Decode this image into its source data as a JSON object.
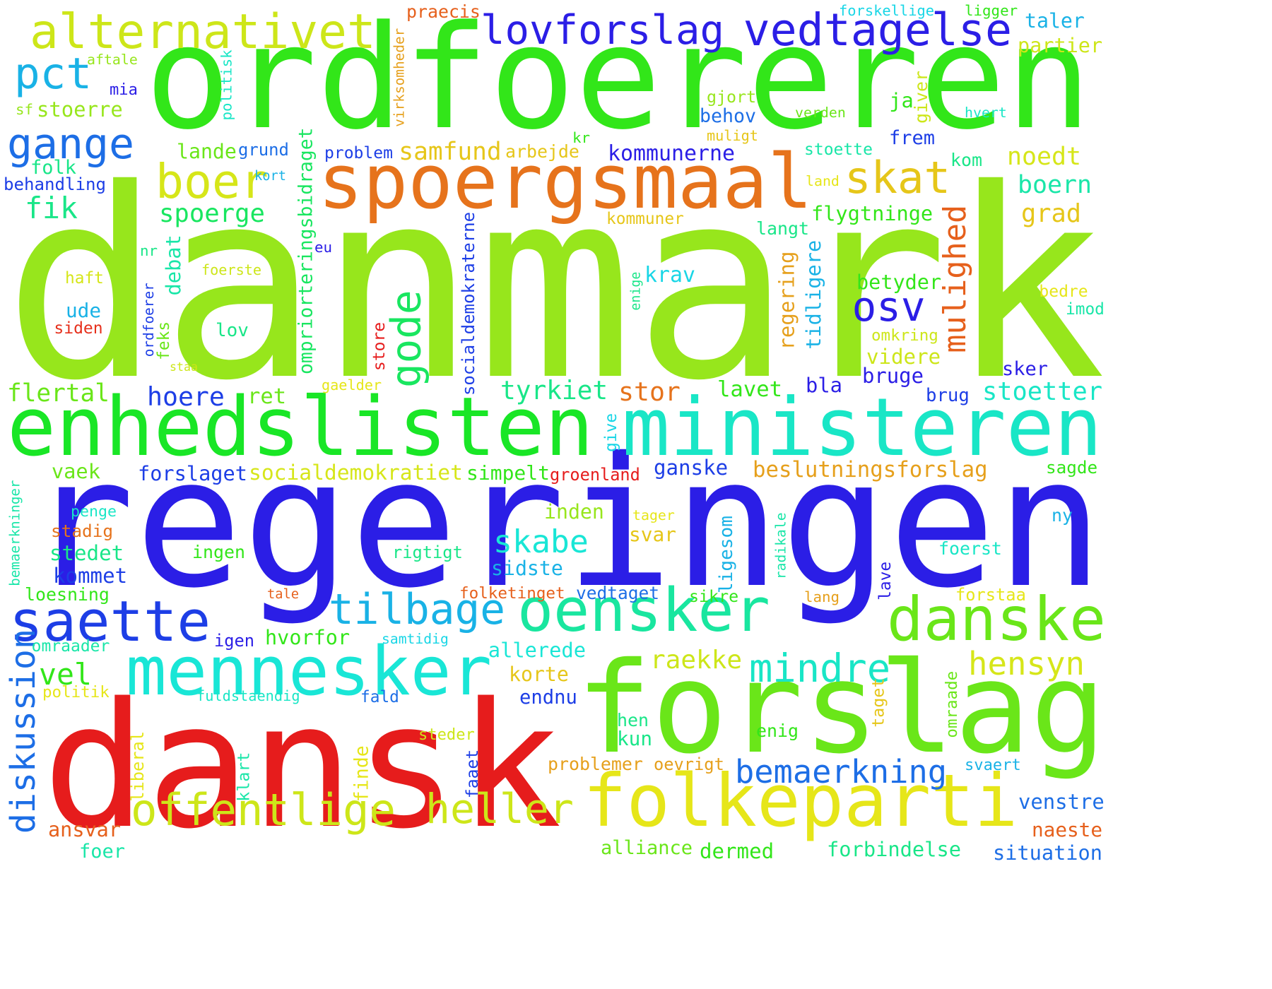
{
  "words": [
    {
      "text": "danmark",
      "color": "#97e61c"
    },
    {
      "text": "regeringen",
      "color": "#2b1ee6"
    },
    {
      "text": "ordfoereren",
      "color": "#32e619"
    },
    {
      "text": "dansk",
      "color": "#e61c1c"
    },
    {
      "text": "forslag",
      "color": "#6ae619"
    },
    {
      "text": "enhedslisten",
      "color": "#19e626"
    },
    {
      "text": "ministeren",
      "color": "#19e6c6"
    },
    {
      "text": "spoergsmaal",
      "color": "#e6731c"
    },
    {
      "text": "folkeparti",
      "color": "#e6e619"
    },
    {
      "text": "mennesker",
      "color": "#19e6d6"
    },
    {
      "text": "danske",
      "color": "#6ae619"
    },
    {
      "text": "oensker",
      "color": "#19e69f"
    },
    {
      "text": "saette",
      "color": "#1d3ee6"
    },
    {
      "text": "tilbage",
      "color": "#19b2e6"
    },
    {
      "text": "offentlige",
      "color": "#cde619"
    },
    {
      "text": "heller",
      "color": "#cde619"
    },
    {
      "text": "alternativet",
      "color": "#cde619"
    },
    {
      "text": "lovforslag",
      "color": "#2b1ee6"
    },
    {
      "text": "vedtagelse",
      "color": "#2b1ee6"
    },
    {
      "text": "boer",
      "color": "#d6e619"
    },
    {
      "text": "skat",
      "color": "#e6c619"
    },
    {
      "text": "gange",
      "color": "#1d6ee6"
    },
    {
      "text": "pct",
      "color": "#19b2e6"
    },
    {
      "text": "mulighed",
      "color": "#e6601c"
    },
    {
      "text": "gode",
      "color": "#19e660"
    },
    {
      "text": "osv",
      "color": "#2b1ee6"
    },
    {
      "text": "diskussion",
      "color": "#1d6ee6"
    },
    {
      "text": "bemaerkning",
      "color": "#1d6ee6"
    },
    {
      "text": "mindre",
      "color": "#19e6c6"
    },
    {
      "text": "hensyn",
      "color": "#d6e619"
    },
    {
      "text": "fik",
      "color": "#19e688"
    },
    {
      "text": "spoerge",
      "color": "#19e660"
    },
    {
      "text": "flertal",
      "color": "#6ae619"
    },
    {
      "text": "hoere",
      "color": "#1d3ee6"
    },
    {
      "text": "ret",
      "color": "#6ae619"
    },
    {
      "text": "tyrkiet",
      "color": "#19e688"
    },
    {
      "text": "stor",
      "color": "#e6731c"
    },
    {
      "text": "lavet",
      "color": "#32e619"
    },
    {
      "text": "bla",
      "color": "#2b1ee6"
    },
    {
      "text": "bruge",
      "color": "#2b1ee6"
    },
    {
      "text": "stoetter",
      "color": "#19e6c6"
    },
    {
      "text": "skabe",
      "color": "#19e6d6"
    },
    {
      "text": "forslaget",
      "color": "#1d3ee6"
    },
    {
      "text": "socialdemokratiet",
      "color": "#d6e619"
    },
    {
      "text": "simpelt",
      "color": "#32e619"
    },
    {
      "text": "groenland",
      "color": "#e61c1c"
    },
    {
      "text": "ganske",
      "color": "#1d3ee6"
    },
    {
      "text": "beslutningsforslag",
      "color": "#e6a01c"
    },
    {
      "text": "sagde",
      "color": "#32e619"
    },
    {
      "text": "vel",
      "color": "#32e619"
    },
    {
      "text": "vaek",
      "color": "#6ae619"
    },
    {
      "text": "raekke",
      "color": "#cde619"
    },
    {
      "text": "samfund",
      "color": "#e6c619"
    },
    {
      "text": "arbejde",
      "color": "#e6c619"
    },
    {
      "text": "kommunerne",
      "color": "#2b1ee6"
    },
    {
      "text": "noedt",
      "color": "#d6e619"
    },
    {
      "text": "boern",
      "color": "#19e6a8"
    },
    {
      "text": "grad",
      "color": "#e6c619"
    },
    {
      "text": "flygtninge",
      "color": "#32e619"
    },
    {
      "text": "langt",
      "color": "#19e688"
    },
    {
      "text": "krav",
      "color": "#19d6e6"
    },
    {
      "text": "betyder",
      "color": "#32e619"
    },
    {
      "text": "tidligere",
      "color": "#19b2e6"
    },
    {
      "text": "regering",
      "color": "#e6a01c"
    },
    {
      "text": "videre",
      "color": "#cde619"
    },
    {
      "text": "sker",
      "color": "#2b1ee6"
    },
    {
      "text": "brug",
      "color": "#1d3ee6"
    },
    {
      "text": "ansvar",
      "color": "#e6601c"
    },
    {
      "text": "foer",
      "color": "#19e6a8"
    },
    {
      "text": "alliance",
      "color": "#6ae619"
    },
    {
      "text": "dermed",
      "color": "#32e619"
    },
    {
      "text": "forbindelse",
      "color": "#19e688"
    },
    {
      "text": "situation",
      "color": "#1d6ee6"
    },
    {
      "text": "venstre",
      "color": "#1d6ee6"
    },
    {
      "text": "naeste",
      "color": "#e6601c"
    },
    {
      "text": "praecis",
      "color": "#e6601c"
    },
    {
      "text": "forskellige",
      "color": "#19d6e6"
    },
    {
      "text": "ligger",
      "color": "#32e619"
    },
    {
      "text": "taler",
      "color": "#19b2e6"
    },
    {
      "text": "partier",
      "color": "#cde619"
    },
    {
      "text": "aftale",
      "color": "#97e61c"
    },
    {
      "text": "mia",
      "color": "#2b1ee6"
    },
    {
      "text": "sf",
      "color": "#97e61c"
    },
    {
      "text": "stoerre",
      "color": "#97e61c"
    },
    {
      "text": "folk",
      "color": "#19e688"
    },
    {
      "text": "behandling",
      "color": "#1d3ee6"
    },
    {
      "text": "lande",
      "color": "#6ae619"
    },
    {
      "text": "grund",
      "color": "#1d6ee6"
    },
    {
      "text": "kort",
      "color": "#19b2e6"
    },
    {
      "text": "nr",
      "color": "#19e688"
    },
    {
      "text": "eu",
      "color": "#2b1ee6"
    },
    {
      "text": "haft",
      "color": "#d6e619"
    },
    {
      "text": "foerste",
      "color": "#cde619"
    },
    {
      "text": "debat",
      "color": "#19e6a8"
    },
    {
      "text": "ude",
      "color": "#19b2e6"
    },
    {
      "text": "siden",
      "color": "#e6301c"
    },
    {
      "text": "lov",
      "color": "#19e688"
    },
    {
      "text": "ordfoerer",
      "color": "#1d3ee6"
    },
    {
      "text": "feks",
      "color": "#6ae619"
    },
    {
      "text": "staa",
      "color": "#cde619"
    },
    {
      "text": "gaelder",
      "color": "#e6e619"
    },
    {
      "text": "store",
      "color": "#e61c1c"
    },
    {
      "text": "socialdemokraterne",
      "color": "#1d3ee6"
    },
    {
      "text": "ompriorteringsbidraget",
      "color": "#19e660"
    },
    {
      "text": "politisk",
      "color": "#19e6c6"
    },
    {
      "text": "virksomheder",
      "color": "#e6a01c"
    },
    {
      "text": "gjort",
      "color": "#97e61c"
    },
    {
      "text": "behov",
      "color": "#1d6ee6"
    },
    {
      "text": "muligt",
      "color": "#e6c619"
    },
    {
      "text": "verden",
      "color": "#6ae619"
    },
    {
      "text": "ja",
      "color": "#32e619"
    },
    {
      "text": "giver",
      "color": "#cde619"
    },
    {
      "text": "hvert",
      "color": "#19e6c6"
    },
    {
      "text": "kr",
      "color": "#32e619"
    },
    {
      "text": "frem",
      "color": "#1d3ee6"
    },
    {
      "text": "problem",
      "color": "#1d3ee6"
    },
    {
      "text": "stoette",
      "color": "#19e6a8"
    },
    {
      "text": "kom",
      "color": "#19e688"
    },
    {
      "text": "land",
      "color": "#e6e619"
    },
    {
      "text": "kommuner",
      "color": "#e6c619"
    },
    {
      "text": "enige",
      "color": "#19e688"
    },
    {
      "text": "omkring",
      "color": "#cde619"
    },
    {
      "text": "bedre",
      "color": "#e6e619"
    },
    {
      "text": "imod",
      "color": "#19e6a8"
    },
    {
      "text": "give",
      "color": "#19d6e6"
    },
    {
      "text": "bemaerkninger",
      "color": "#19e6a8"
    },
    {
      "text": "penge",
      "color": "#19e6c6"
    },
    {
      "text": "stadig",
      "color": "#e6731c"
    },
    {
      "text": "stedet",
      "color": "#19e688"
    },
    {
      "text": "kommet",
      "color": "#1d3ee6"
    },
    {
      "text": "loesning",
      "color": "#32e619"
    },
    {
      "text": "inden",
      "color": "#97e61c"
    },
    {
      "text": "svar",
      "color": "#e6c619"
    },
    {
      "text": "ingen",
      "color": "#32e619"
    },
    {
      "text": "rigtigt",
      "color": "#19e688"
    },
    {
      "text": "sidste",
      "color": "#19b2e6"
    },
    {
      "text": "ligesom",
      "color": "#19b2e6"
    },
    {
      "text": "tager",
      "color": "#e6e619"
    },
    {
      "text": "radikale",
      "color": "#19e6a8"
    },
    {
      "text": "ny",
      "color": "#19b2e6"
    },
    {
      "text": "foerst",
      "color": "#19e6c6"
    },
    {
      "text": "lave",
      "color": "#2b1ee6"
    },
    {
      "text": "folketinget",
      "color": "#e6601c"
    },
    {
      "text": "vedtaget",
      "color": "#1d6ee6"
    },
    {
      "text": "sikre",
      "color": "#32e619"
    },
    {
      "text": "tale",
      "color": "#e6601c"
    },
    {
      "text": "lang",
      "color": "#e6a01c"
    },
    {
      "text": "forstaa",
      "color": "#e6e619"
    },
    {
      "text": "omraader",
      "color": "#19e6a8"
    },
    {
      "text": "igen",
      "color": "#2b1ee6"
    },
    {
      "text": "hvorfor",
      "color": "#32e619"
    },
    {
      "text": "samtidig",
      "color": "#19d6e6"
    },
    {
      "text": "allerede",
      "color": "#19e6d6"
    },
    {
      "text": "politik",
      "color": "#e6e619"
    },
    {
      "text": "fuldstaendig",
      "color": "#19e6c6"
    },
    {
      "text": "fald",
      "color": "#1d6ee6"
    },
    {
      "text": "korte",
      "color": "#e6c619"
    },
    {
      "text": "endnu",
      "color": "#1d3ee6"
    },
    {
      "text": "taget",
      "color": "#e6c619"
    },
    {
      "text": "omraade",
      "color": "#6ae619"
    },
    {
      "text": "hen",
      "color": "#19e688"
    },
    {
      "text": "kun",
      "color": "#19e688"
    },
    {
      "text": "enig",
      "color": "#32e619"
    },
    {
      "text": "liberal",
      "color": "#e6e619"
    },
    {
      "text": "klart",
      "color": "#19e6a8"
    },
    {
      "text": "finde",
      "color": "#e6e619"
    },
    {
      "text": "steder",
      "color": "#cde619"
    },
    {
      "text": "faaet",
      "color": "#1d3ee6"
    },
    {
      "text": "problemer",
      "color": "#e6a01c"
    },
    {
      "text": "oevrigt",
      "color": "#e6a01c"
    },
    {
      "text": "svaert",
      "color": "#19b2e6"
    }
  ]
}
